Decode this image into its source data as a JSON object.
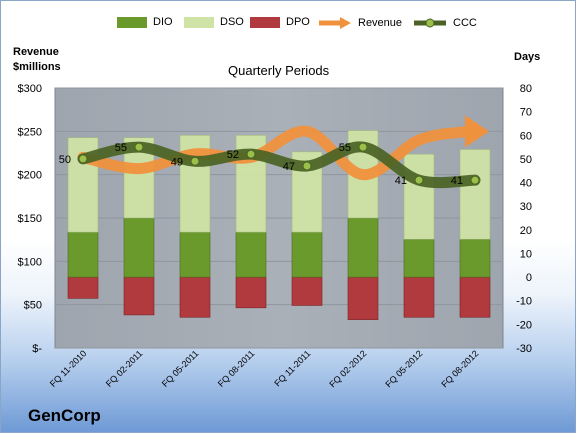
{
  "chart_data": {
    "type": "bar",
    "title": "Quarterly Periods",
    "company": "GenCorp",
    "left_axis_label": [
      "Revenue",
      "$millions"
    ],
    "right_axis_label": "Days",
    "left_ticks": [
      "$-",
      "$50",
      "$100",
      "$150",
      "$200",
      "$250",
      "$300"
    ],
    "left_ylim": [
      0,
      300
    ],
    "right_ticks": [
      "-30",
      "-20",
      "-10",
      "0",
      "10",
      "20",
      "30",
      "40",
      "50",
      "60",
      "70",
      "80"
    ],
    "right_ylim": [
      -30,
      80
    ],
    "categories": [
      "FQ 11-2010",
      "FQ 02-2011",
      "FQ 05-2011",
      "FQ 08-2011",
      "FQ 11-2011",
      "FQ 02-2012",
      "FQ 05-2012",
      "FQ 08-2012"
    ],
    "series": [
      {
        "name": "DIO",
        "axis": "days",
        "values": [
          19,
          25,
          19,
          19,
          19,
          25,
          16,
          16
        ]
      },
      {
        "name": "DSO",
        "axis": "days",
        "values": [
          40,
          34,
          41,
          41,
          34,
          37,
          36,
          38
        ]
      },
      {
        "name": "DPO",
        "axis": "days",
        "values": [
          -9,
          -16,
          -17,
          -13,
          -12,
          -18,
          -17,
          -17
        ]
      },
      {
        "name": "Revenue",
        "axis": "revenue",
        "values": [
          220,
          207,
          224,
          220,
          250,
          200,
          240,
          250
        ]
      },
      {
        "name": "CCC",
        "axis": "days",
        "values": [
          50,
          55,
          49,
          52,
          47,
          55,
          41,
          41
        ]
      }
    ],
    "ccc_labels": [
      "50",
      "55",
      "49",
      "52",
      "47",
      "55",
      "41",
      "41"
    ],
    "colors": {
      "DIO": "#6b9a2c",
      "DSO": "#cfe3a6",
      "DPO": "#b03a3e",
      "Revenue": "#f0913d",
      "CCC": "#4a6324",
      "plot_bg": "#aab0b8",
      "grid": "#8f969f"
    },
    "grid": true,
    "legend": "top"
  }
}
